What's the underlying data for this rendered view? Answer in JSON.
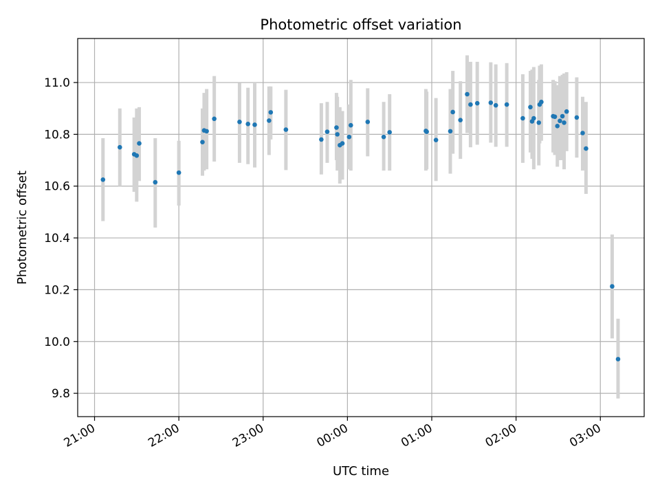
{
  "chart_data": {
    "type": "scatter",
    "title": "Photometric offset variation",
    "xlabel": "UTC time",
    "ylabel": "Photometric offset",
    "x_unit": "UTC time (hours past 00:00; negative = previous day)",
    "xlim": [
      -3.2,
      3.52
    ],
    "ylim": [
      9.71,
      11.17
    ],
    "x_ticks": [
      {
        "value": -3,
        "label": "21:00"
      },
      {
        "value": -2,
        "label": "22:00"
      },
      {
        "value": -1,
        "label": "23:00"
      },
      {
        "value": 0,
        "label": "00:00"
      },
      {
        "value": 1,
        "label": "01:00"
      },
      {
        "value": 2,
        "label": "02:00"
      },
      {
        "value": 3,
        "label": "03:00"
      }
    ],
    "y_ticks": [
      {
        "value": 9.8,
        "label": "9.8"
      },
      {
        "value": 10.0,
        "label": "10.0"
      },
      {
        "value": 10.2,
        "label": "10.2"
      },
      {
        "value": 10.4,
        "label": "10.4"
      },
      {
        "value": 10.6,
        "label": "10.6"
      },
      {
        "value": 10.8,
        "label": "10.8"
      },
      {
        "value": 11.0,
        "label": "11.0"
      }
    ],
    "grid": true,
    "point_color": "#1f77b4",
    "errorbar_color": "#d3d3d3",
    "points": [
      {
        "x": -2.9,
        "y": 10.625,
        "lo": 10.465,
        "hi": 10.785
      },
      {
        "x": -2.7,
        "y": 10.75,
        "lo": 10.6,
        "hi": 10.9
      },
      {
        "x": -2.53,
        "y": 10.723,
        "lo": 10.578,
        "hi": 10.865
      },
      {
        "x": -2.5,
        "y": 10.718,
        "lo": 10.54,
        "hi": 10.9
      },
      {
        "x": -2.47,
        "y": 10.765,
        "lo": 10.62,
        "hi": 10.905
      },
      {
        "x": -2.28,
        "y": 10.615,
        "lo": 10.44,
        "hi": 10.785
      },
      {
        "x": -2.0,
        "y": 10.652,
        "lo": 10.525,
        "hi": 10.775
      },
      {
        "x": -1.72,
        "y": 10.77,
        "lo": 10.64,
        "hi": 10.9
      },
      {
        "x": -1.7,
        "y": 10.815,
        "lo": 10.66,
        "hi": 10.96
      },
      {
        "x": -1.67,
        "y": 10.812,
        "lo": 10.665,
        "hi": 10.975
      },
      {
        "x": -1.58,
        "y": 10.86,
        "lo": 10.695,
        "hi": 11.025
      },
      {
        "x": -1.28,
        "y": 10.848,
        "lo": 10.69,
        "hi": 10.998
      },
      {
        "x": -1.18,
        "y": 10.84,
        "lo": 10.685,
        "hi": 10.98
      },
      {
        "x": -1.1,
        "y": 10.837,
        "lo": 10.672,
        "hi": 10.997
      },
      {
        "x": -0.93,
        "y": 10.853,
        "lo": 10.72,
        "hi": 10.985
      },
      {
        "x": -0.91,
        "y": 10.885,
        "lo": 10.78,
        "hi": 10.985
      },
      {
        "x": -0.73,
        "y": 10.818,
        "lo": 10.662,
        "hi": 10.972
      },
      {
        "x": -0.31,
        "y": 10.78,
        "lo": 10.645,
        "hi": 10.92
      },
      {
        "x": -0.24,
        "y": 10.81,
        "lo": 10.69,
        "hi": 10.925
      },
      {
        "x": -0.13,
        "y": 10.826,
        "lo": 10.7,
        "hi": 10.96
      },
      {
        "x": -0.12,
        "y": 10.8,
        "lo": 10.66,
        "hi": 10.945
      },
      {
        "x": -0.09,
        "y": 10.758,
        "lo": 10.61,
        "hi": 10.905
      },
      {
        "x": -0.06,
        "y": 10.765,
        "lo": 10.625,
        "hi": 10.89
      },
      {
        "x": 0.02,
        "y": 10.79,
        "lo": 10.665,
        "hi": 10.915
      },
      {
        "x": 0.04,
        "y": 10.835,
        "lo": 10.66,
        "hi": 11.01
      },
      {
        "x": 0.24,
        "y": 10.848,
        "lo": 10.715,
        "hi": 10.978
      },
      {
        "x": 0.43,
        "y": 10.79,
        "lo": 10.66,
        "hi": 10.925
      },
      {
        "x": 0.5,
        "y": 10.808,
        "lo": 10.66,
        "hi": 10.955
      },
      {
        "x": 0.93,
        "y": 10.813,
        "lo": 10.66,
        "hi": 10.975
      },
      {
        "x": 0.94,
        "y": 10.81,
        "lo": 10.665,
        "hi": 10.965
      },
      {
        "x": 1.05,
        "y": 10.778,
        "lo": 10.62,
        "hi": 10.94
      },
      {
        "x": 1.22,
        "y": 10.812,
        "lo": 10.648,
        "hi": 10.975
      },
      {
        "x": 1.25,
        "y": 10.886,
        "lo": 10.725,
        "hi": 11.045
      },
      {
        "x": 1.34,
        "y": 10.855,
        "lo": 10.705,
        "hi": 11.005
      },
      {
        "x": 1.42,
        "y": 10.955,
        "lo": 10.805,
        "hi": 11.105
      },
      {
        "x": 1.46,
        "y": 10.915,
        "lo": 10.75,
        "hi": 11.08
      },
      {
        "x": 1.54,
        "y": 10.92,
        "lo": 10.76,
        "hi": 11.08
      },
      {
        "x": 1.7,
        "y": 10.922,
        "lo": 10.768,
        "hi": 11.078
      },
      {
        "x": 1.76,
        "y": 10.912,
        "lo": 10.752,
        "hi": 11.07
      },
      {
        "x": 1.89,
        "y": 10.915,
        "lo": 10.752,
        "hi": 11.075
      },
      {
        "x": 2.08,
        "y": 10.862,
        "lo": 10.69,
        "hi": 11.032
      },
      {
        "x": 2.17,
        "y": 10.905,
        "lo": 10.73,
        "hi": 11.045
      },
      {
        "x": 2.19,
        "y": 10.85,
        "lo": 10.705,
        "hi": 11.05
      },
      {
        "x": 2.21,
        "y": 10.862,
        "lo": 10.665,
        "hi": 11.06
      },
      {
        "x": 2.27,
        "y": 10.845,
        "lo": 10.68,
        "hi": 11.01
      },
      {
        "x": 2.28,
        "y": 10.915,
        "lo": 10.765,
        "hi": 11.065
      },
      {
        "x": 2.3,
        "y": 10.925,
        "lo": 10.775,
        "hi": 11.07
      },
      {
        "x": 2.44,
        "y": 10.87,
        "lo": 10.73,
        "hi": 11.01
      },
      {
        "x": 2.46,
        "y": 10.868,
        "lo": 10.72,
        "hi": 11.005
      },
      {
        "x": 2.49,
        "y": 10.832,
        "lo": 10.675,
        "hi": 10.99
      },
      {
        "x": 2.52,
        "y": 10.852,
        "lo": 10.7,
        "hi": 11.025
      },
      {
        "x": 2.55,
        "y": 10.87,
        "lo": 10.7,
        "hi": 11.03
      },
      {
        "x": 2.57,
        "y": 10.845,
        "lo": 10.665,
        "hi": 11.035
      },
      {
        "x": 2.6,
        "y": 10.888,
        "lo": 10.735,
        "hi": 11.04
      },
      {
        "x": 2.72,
        "y": 10.865,
        "lo": 10.71,
        "hi": 11.02
      },
      {
        "x": 2.79,
        "y": 10.805,
        "lo": 10.66,
        "hi": 10.945
      },
      {
        "x": 2.83,
        "y": 10.745,
        "lo": 10.57,
        "hi": 10.925
      },
      {
        "x": 3.14,
        "y": 10.213,
        "lo": 10.012,
        "hi": 10.413
      },
      {
        "x": 3.21,
        "y": 9.932,
        "lo": 9.78,
        "hi": 10.088
      }
    ]
  }
}
